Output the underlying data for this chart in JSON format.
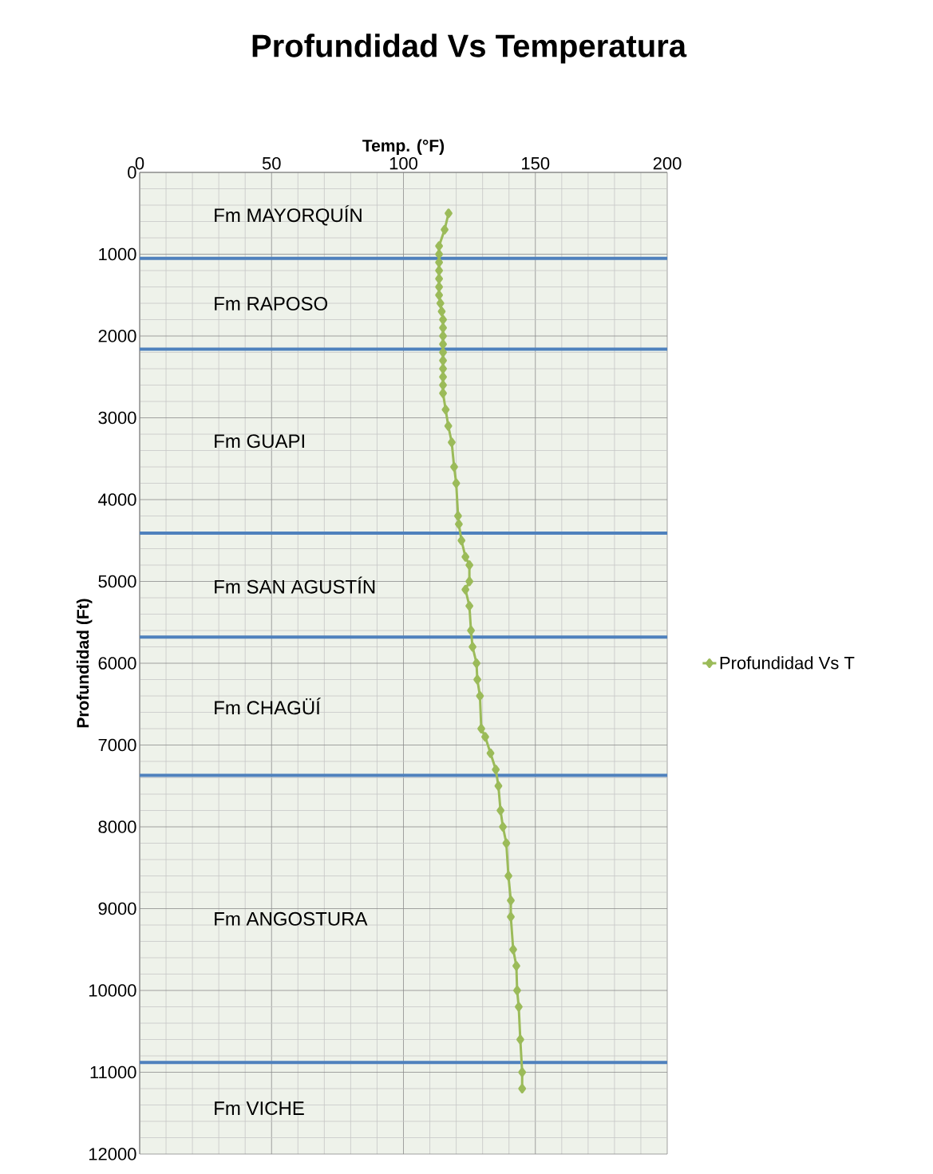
{
  "chart_data": {
    "type": "line",
    "title": "Profundidad Vs Temperatura",
    "xlabel": "Temp. (°F)",
    "ylabel": "Profundidad (Ft)",
    "xlim": [
      0,
      200
    ],
    "xticks": [
      0,
      50,
      100,
      150,
      200
    ],
    "ylim": [
      12000,
      0
    ],
    "yticks": [
      0,
      1000,
      2000,
      3000,
      4000,
      5000,
      6000,
      7000,
      8000,
      9000,
      10000,
      11000,
      12000
    ],
    "grid": true,
    "legend": "right",
    "marker": "diamond",
    "line_style": "solid",
    "series": [
      {
        "name": "Profundidad Vs T",
        "color": "#9bbb59",
        "x": [
          117.1,
          115.6,
          113.5,
          113.5,
          113.5,
          113.5,
          113.5,
          113.5,
          113.5,
          114,
          114.5,
          115,
          115,
          115,
          115,
          115,
          115,
          115,
          115,
          115,
          115,
          116,
          117,
          118.3,
          119.2,
          120,
          120.7,
          121,
          122,
          123.5,
          125,
          125,
          123.5,
          125,
          125.6,
          126.2,
          127.7,
          128,
          129,
          129.5,
          131,
          133,
          135,
          136,
          136.8,
          137.7,
          139,
          139.8,
          140.7,
          140.7,
          141.6,
          142.8,
          143.1,
          143.7,
          144.3,
          145,
          145
        ],
        "values": [
          500,
          700,
          900,
          1000,
          1100,
          1200,
          1300,
          1400,
          1500,
          1600,
          1700,
          1800,
          1900,
          2000,
          2100,
          2200,
          2300,
          2400,
          2500,
          2600,
          2700,
          2900,
          3100,
          3300,
          3600,
          3800,
          4200,
          4300,
          4500,
          4700,
          4800,
          5000,
          5100,
          5300,
          5600,
          5800,
          6000,
          6200,
          6400,
          6800,
          6900,
          7100,
          7300,
          7500,
          7800,
          8000,
          8200,
          8600,
          8900,
          9100,
          9500,
          9700,
          10000,
          10200,
          10600,
          11000,
          11200
        ]
      }
    ],
    "ref_lines": [
      {
        "axis": "y",
        "value": 1050,
        "color": "#4f81bd"
      },
      {
        "axis": "y",
        "value": 2160,
        "color": "#4f81bd"
      },
      {
        "axis": "y",
        "value": 4410,
        "color": "#4f81bd"
      },
      {
        "axis": "y",
        "value": 5680,
        "color": "#4f81bd"
      },
      {
        "axis": "y",
        "value": 7370,
        "color": "#4f81bd"
      },
      {
        "axis": "y",
        "value": 10880,
        "color": "#4f81bd"
      }
    ],
    "annotations": [
      "Fm MAYORQUÍN",
      "Fm RAPOSO",
      "Fm GUAPI",
      "Fm SAN AGUSTÍN",
      "Fm CHAGÜÍ",
      "Fm ANGOSTURA",
      "Fm VICHE"
    ]
  }
}
